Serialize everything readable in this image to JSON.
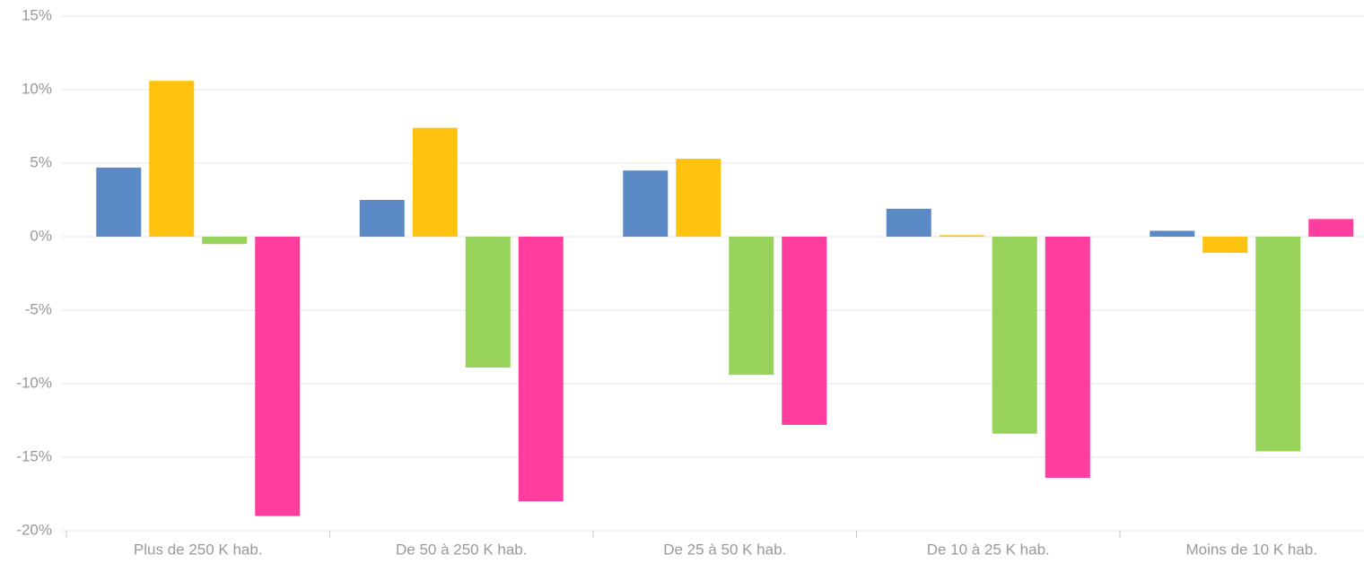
{
  "chart_data": {
    "type": "bar",
    "categories": [
      "Plus de 250 K hab.",
      "De 50 à 250 K hab.",
      "De 25 à 50 K hab.",
      "De 10 à 25 K hab.",
      "Moins de 10 K hab."
    ],
    "series": [
      {
        "color": "#5b8ac6",
        "values": [
          4.7,
          2.5,
          4.5,
          1.9,
          0.4
        ]
      },
      {
        "color": "#ffc20e",
        "values": [
          10.6,
          7.4,
          5.3,
          0.1,
          -1.1
        ]
      },
      {
        "color": "#97d35a",
        "values": [
          -0.5,
          -8.9,
          -9.4,
          -13.4,
          -14.6
        ]
      },
      {
        "color": "#ff3d9e",
        "values": [
          -19.0,
          -18.0,
          -12.8,
          -16.4,
          1.2
        ]
      }
    ],
    "ylim": [
      -20,
      15
    ],
    "yticks": [
      {
        "value": -20,
        "label": "-20%"
      },
      {
        "value": -15,
        "label": "-15%"
      },
      {
        "value": -10,
        "label": "-10%"
      },
      {
        "value": -5,
        "label": "-5%"
      },
      {
        "value": 0,
        "label": "0%"
      },
      {
        "value": 5,
        "label": "5%"
      },
      {
        "value": 10,
        "label": "10%"
      },
      {
        "value": 15,
        "label": "15%"
      }
    ],
    "grid": true
  }
}
